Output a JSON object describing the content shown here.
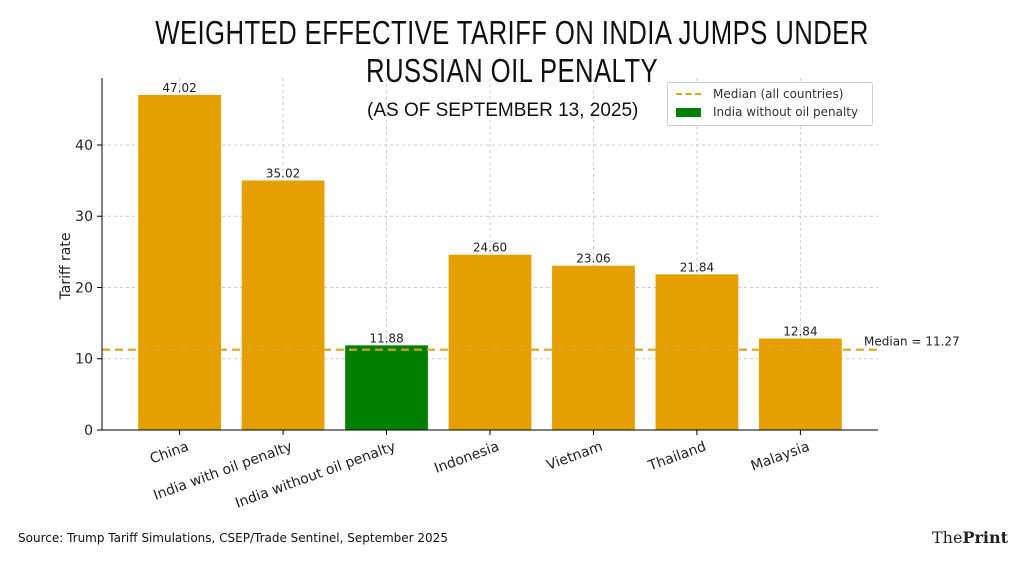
{
  "title": "WEIGHTED EFFECTIVE TARIFF ON INDIA JUMPS UNDER RUSSIAN OIL PENALTY",
  "subtitle": "(AS OF SEPTEMBER 13, 2025)",
  "source": "Source: Trump Tariff Simulations, CSEP/Trade Sentinel, September 2025",
  "logo": {
    "part1": "The",
    "part2": "Print"
  },
  "chart_data": {
    "type": "bar",
    "categories": [
      "China",
      "India with oil penalty",
      "India without oil penalty",
      "Indonesia",
      "Vietnam",
      "Thailand",
      "Malaysia"
    ],
    "values": [
      47.02,
      35.02,
      11.88,
      24.6,
      23.06,
      21.84,
      12.84
    ],
    "data_labels": [
      "47.02",
      "35.02",
      "11.88",
      "24.60",
      "23.06",
      "21.84",
      "12.84"
    ],
    "colors": [
      "#E69F00",
      "#E69F00",
      "#008000",
      "#E69F00",
      "#E69F00",
      "#E69F00",
      "#E69F00"
    ],
    "xlabel": "",
    "ylabel": "Tariff rate",
    "ylim": [
      0,
      49.4
    ],
    "yticks": [
      0,
      10,
      20,
      30,
      40
    ],
    "grid": true,
    "median": {
      "value": 11.27,
      "label": "Median = 11.27",
      "color": "#DAA520"
    },
    "legend": {
      "placement": "top-right",
      "entries": [
        "Median (all countries)",
        "India without oil penalty"
      ]
    }
  }
}
